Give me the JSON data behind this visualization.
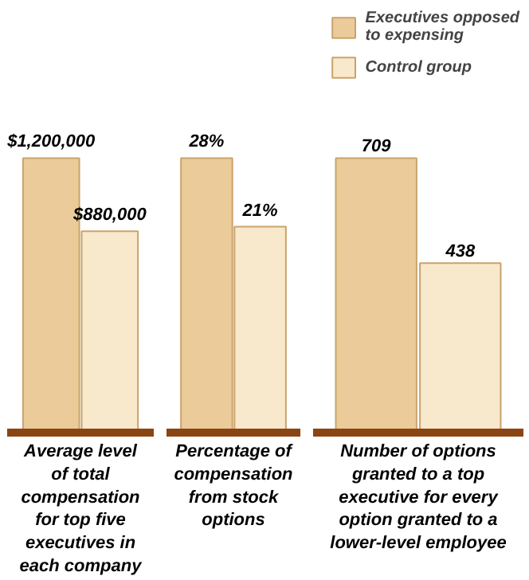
{
  "chart_data": [
    {
      "type": "bar",
      "xlabel": "Average level of total compensation for top five executives in each company",
      "categories": [
        null
      ],
      "grid": false,
      "legend": false,
      "series": [
        {
          "color": "#eccb9b",
          "values": [
            1200000
          ],
          "value_labels": [
            "$1,200,000"
          ]
        },
        {
          "color": "#f8e8cc",
          "values": [
            880000
          ],
          "value_labels": [
            "$880,000"
          ]
        }
      ]
    },
    {
      "type": "bar",
      "xlabel": "Percentage of compensation from stock options",
      "categories": [
        null
      ],
      "grid": false,
      "legend": false,
      "series": [
        {
          "color": "#eccb9b",
          "values": [
            28
          ],
          "value_labels": [
            "28%"
          ]
        },
        {
          "color": "#f8e8cc",
          "values": [
            21
          ],
          "value_labels": [
            "21%"
          ]
        }
      ]
    },
    {
      "type": "bar",
      "xlabel": "Number of options granted to a top executive for every option granted to a lower-level employee",
      "categories": [
        null
      ],
      "grid": false,
      "legend": "top right",
      "series": [
        {
          "name": "Executives opposed to expensing",
          "color": "#eccb9b",
          "values": [
            709
          ],
          "value_labels": [
            "709"
          ]
        },
        {
          "name": "Control group",
          "color": "#f8e8cc",
          "values": [
            438
          ],
          "value_labels": [
            "438"
          ]
        }
      ]
    }
  ]
}
